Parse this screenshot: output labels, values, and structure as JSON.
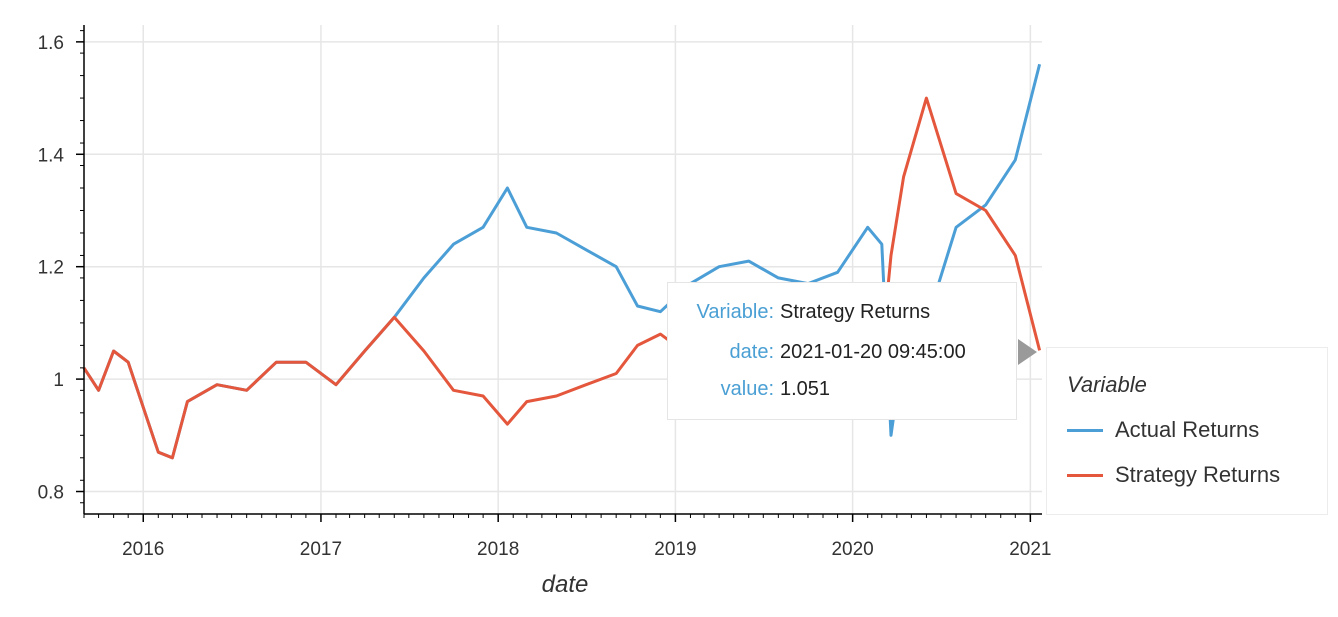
{
  "chart_data": {
    "type": "line",
    "xlabel": "date",
    "x_ticks": [
      "2016",
      "2017",
      "2018",
      "2019",
      "2020",
      "2021"
    ],
    "y_ticks": [
      "0.8",
      "1",
      "1.2",
      "1.4",
      "1.6"
    ],
    "xlim": [
      "2015-09-01",
      "2021-01-25"
    ],
    "ylim": [
      0.76,
      1.63
    ],
    "grid": true,
    "legend": {
      "title": "Variable",
      "placement": "right",
      "entries": [
        "Actual Returns",
        "Strategy Returns"
      ]
    },
    "series": [
      {
        "name": "Actual Returns",
        "color": "#4c9fd6",
        "x": [
          "2015-09-01",
          "2015-10-01",
          "2015-11-01",
          "2015-12-01",
          "2016-01-01",
          "2016-02-01",
          "2016-03-01",
          "2016-04-01",
          "2016-06-01",
          "2016-08-01",
          "2016-10-01",
          "2016-12-01",
          "2017-02-01",
          "2017-04-01",
          "2017-06-01",
          "2017-08-01",
          "2017-10-01",
          "2017-12-01",
          "2018-01-20",
          "2018-03-01",
          "2018-05-01",
          "2018-07-01",
          "2018-09-01",
          "2018-10-15",
          "2018-12-01",
          "2019-02-01",
          "2019-04-01",
          "2019-06-01",
          "2019-08-01",
          "2019-10-01",
          "2019-12-01",
          "2020-02-01",
          "2020-03-01",
          "2020-03-20",
          "2020-04-15",
          "2020-06-01",
          "2020-08-01",
          "2020-10-01",
          "2020-12-01",
          "2021-01-20"
        ],
        "values": [
          1.02,
          0.98,
          1.05,
          1.03,
          0.95,
          0.87,
          0.86,
          0.96,
          0.99,
          0.98,
          1.03,
          1.03,
          0.99,
          1.05,
          1.11,
          1.18,
          1.24,
          1.27,
          1.34,
          1.27,
          1.26,
          1.23,
          1.2,
          1.13,
          1.12,
          1.17,
          1.2,
          1.21,
          1.18,
          1.17,
          1.19,
          1.27,
          1.24,
          0.9,
          1.06,
          1.1,
          1.27,
          1.31,
          1.39,
          1.56
        ]
      },
      {
        "name": "Strategy Returns",
        "color": "#e4573d",
        "x": [
          "2015-09-01",
          "2015-10-01",
          "2015-11-01",
          "2015-12-01",
          "2016-01-01",
          "2016-02-01",
          "2016-03-01",
          "2016-04-01",
          "2016-06-01",
          "2016-08-01",
          "2016-10-01",
          "2016-12-01",
          "2017-02-01",
          "2017-04-01",
          "2017-06-01",
          "2017-08-01",
          "2017-10-01",
          "2017-12-01",
          "2018-01-20",
          "2018-03-01",
          "2018-05-01",
          "2018-07-01",
          "2018-09-01",
          "2018-10-15",
          "2018-12-01",
          "2019-02-01",
          "2019-04-01",
          "2019-06-01",
          "2019-08-01",
          "2019-10-01",
          "2019-12-01",
          "2020-02-01",
          "2020-03-01",
          "2020-03-20",
          "2020-04-15",
          "2020-06-01",
          "2020-08-01",
          "2020-10-01",
          "2020-12-01",
          "2021-01-20"
        ],
        "values": [
          1.02,
          0.98,
          1.05,
          1.03,
          0.95,
          0.87,
          0.86,
          0.96,
          0.99,
          0.98,
          1.03,
          1.03,
          0.99,
          1.05,
          1.11,
          1.05,
          0.98,
          0.97,
          0.92,
          0.96,
          0.97,
          0.99,
          1.01,
          1.06,
          1.08,
          1.04,
          1.03,
          1.02,
          1.0,
          0.98,
          0.96,
          0.93,
          1.05,
          1.22,
          1.36,
          1.5,
          1.33,
          1.3,
          1.22,
          1.051
        ]
      }
    ],
    "tooltip": {
      "rows": [
        {
          "key": "Variable:",
          "value": "Strategy Returns"
        },
        {
          "key": "date:",
          "value": "2021-01-20 09:45:00"
        },
        {
          "key": "value:",
          "value": "1.051"
        }
      ]
    }
  }
}
